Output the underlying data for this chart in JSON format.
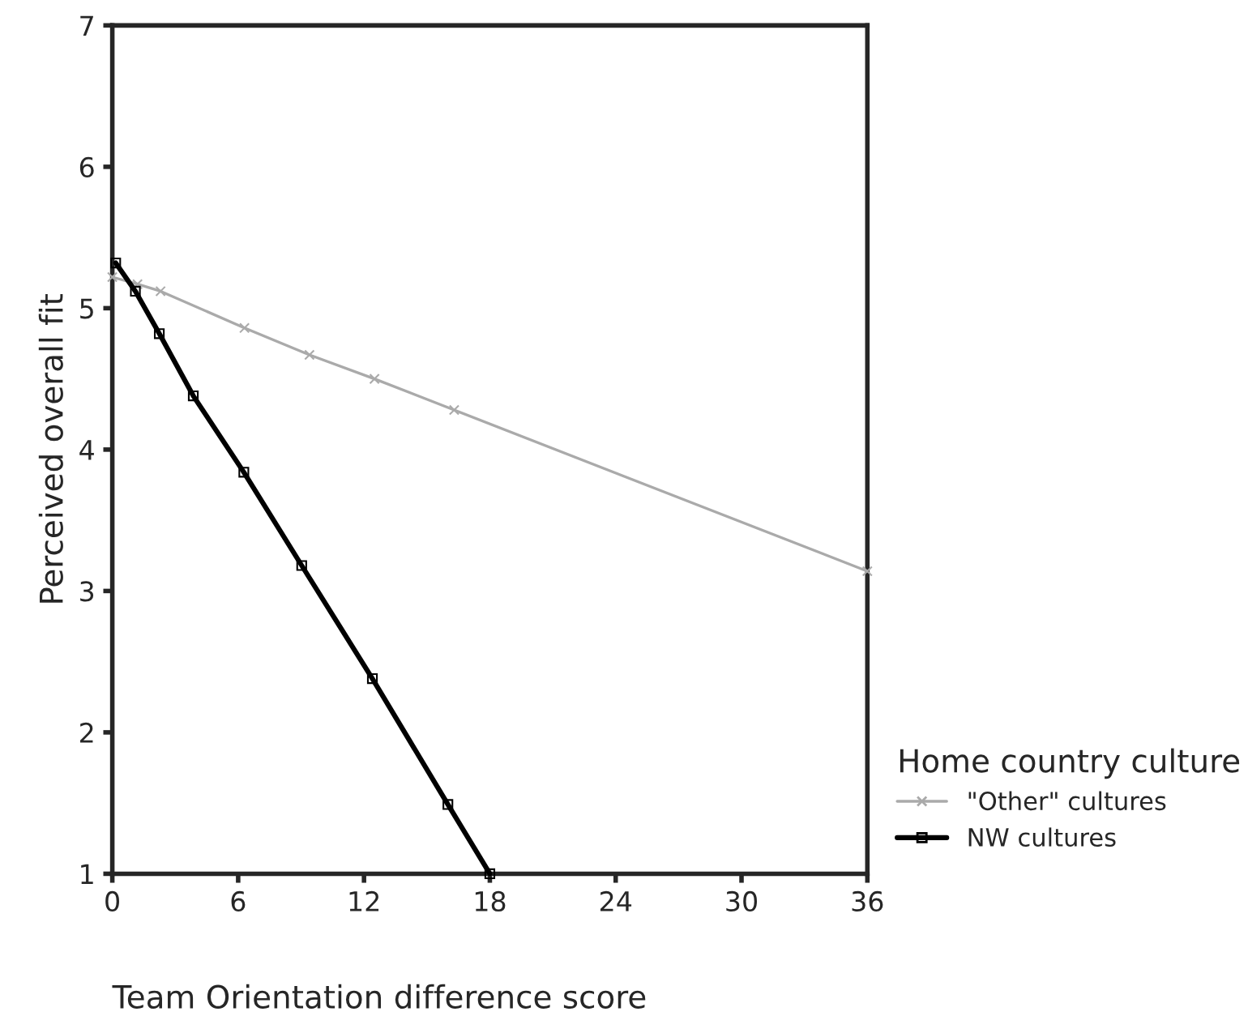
{
  "chart_data": {
    "type": "line",
    "xlabel": "Team Orientation difference score",
    "ylabel": "Perceived overall fit",
    "legend_title": "Home country culture",
    "xlim": [
      0,
      36
    ],
    "xticks": [
      0,
      6,
      12,
      18,
      24,
      30,
      36
    ],
    "ylim": [
      1,
      7
    ],
    "yticks": [
      1,
      2,
      3,
      4,
      5,
      6,
      7
    ],
    "grid": false,
    "legend": "right",
    "line_style": "solid",
    "series": [
      {
        "name": "\"Other\" cultures",
        "color": "#aaaaaa",
        "marker": "cross",
        "x": [
          0,
          1.2,
          2.3,
          6.3,
          9.4,
          12.5,
          16.3,
          36
        ],
        "values": [
          5.22,
          5.17,
          5.12,
          4.86,
          4.67,
          4.5,
          4.28,
          3.14
        ]
      },
      {
        "name": "NW cultures",
        "color": "#000000",
        "marker": "square",
        "x": [
          0.16,
          1.1,
          2.24,
          3.86,
          6.27,
          9.03,
          12.4,
          16.0,
          18.0
        ],
        "values": [
          5.32,
          5.12,
          4.82,
          4.38,
          3.84,
          3.18,
          2.38,
          1.49,
          1.0
        ]
      }
    ]
  }
}
